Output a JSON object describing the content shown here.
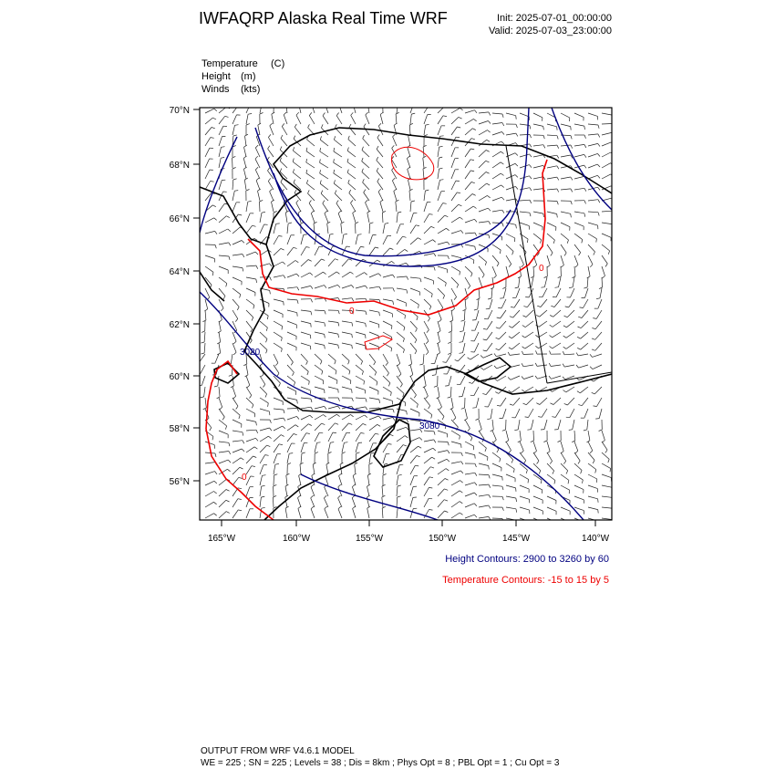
{
  "header": {
    "title": "IWFAQRP Alaska Real Time WRF",
    "init": "Init: 2025-07-01_00:00:00",
    "valid": "Valid: 2025-07-03_23:00:00"
  },
  "fields": [
    {
      "name": "Temperature",
      "unit": "(C)"
    },
    {
      "name": "Height",
      "unit": "(m)"
    },
    {
      "name": "Winds",
      "unit": "(kts)"
    }
  ],
  "map": {
    "lat_labels": [
      "70°N",
      "68°N",
      "66°N",
      "64°N",
      "62°N",
      "60°N",
      "58°N",
      "56°N"
    ],
    "lon_labels": [
      "165°W",
      "160°W",
      "155°W",
      "150°W",
      "145°W",
      "140°W"
    ],
    "contour_labels": [
      "3080",
      "3020",
      "0",
      "0",
      "0"
    ]
  },
  "legend": {
    "height": "Height Contours: 2900 to 3260 by 60",
    "temperature": "Temperature Contours: -15 to 15 by 5"
  },
  "footer": {
    "line1": "OUTPUT FROM WRF V4.6.1 MODEL",
    "line2": "WE = 225 ; SN = 225 ; Levels = 38 ; Dis = 8km ; Phys Opt = 8 ; PBL Opt = 1 ; Cu Opt = 3"
  }
}
